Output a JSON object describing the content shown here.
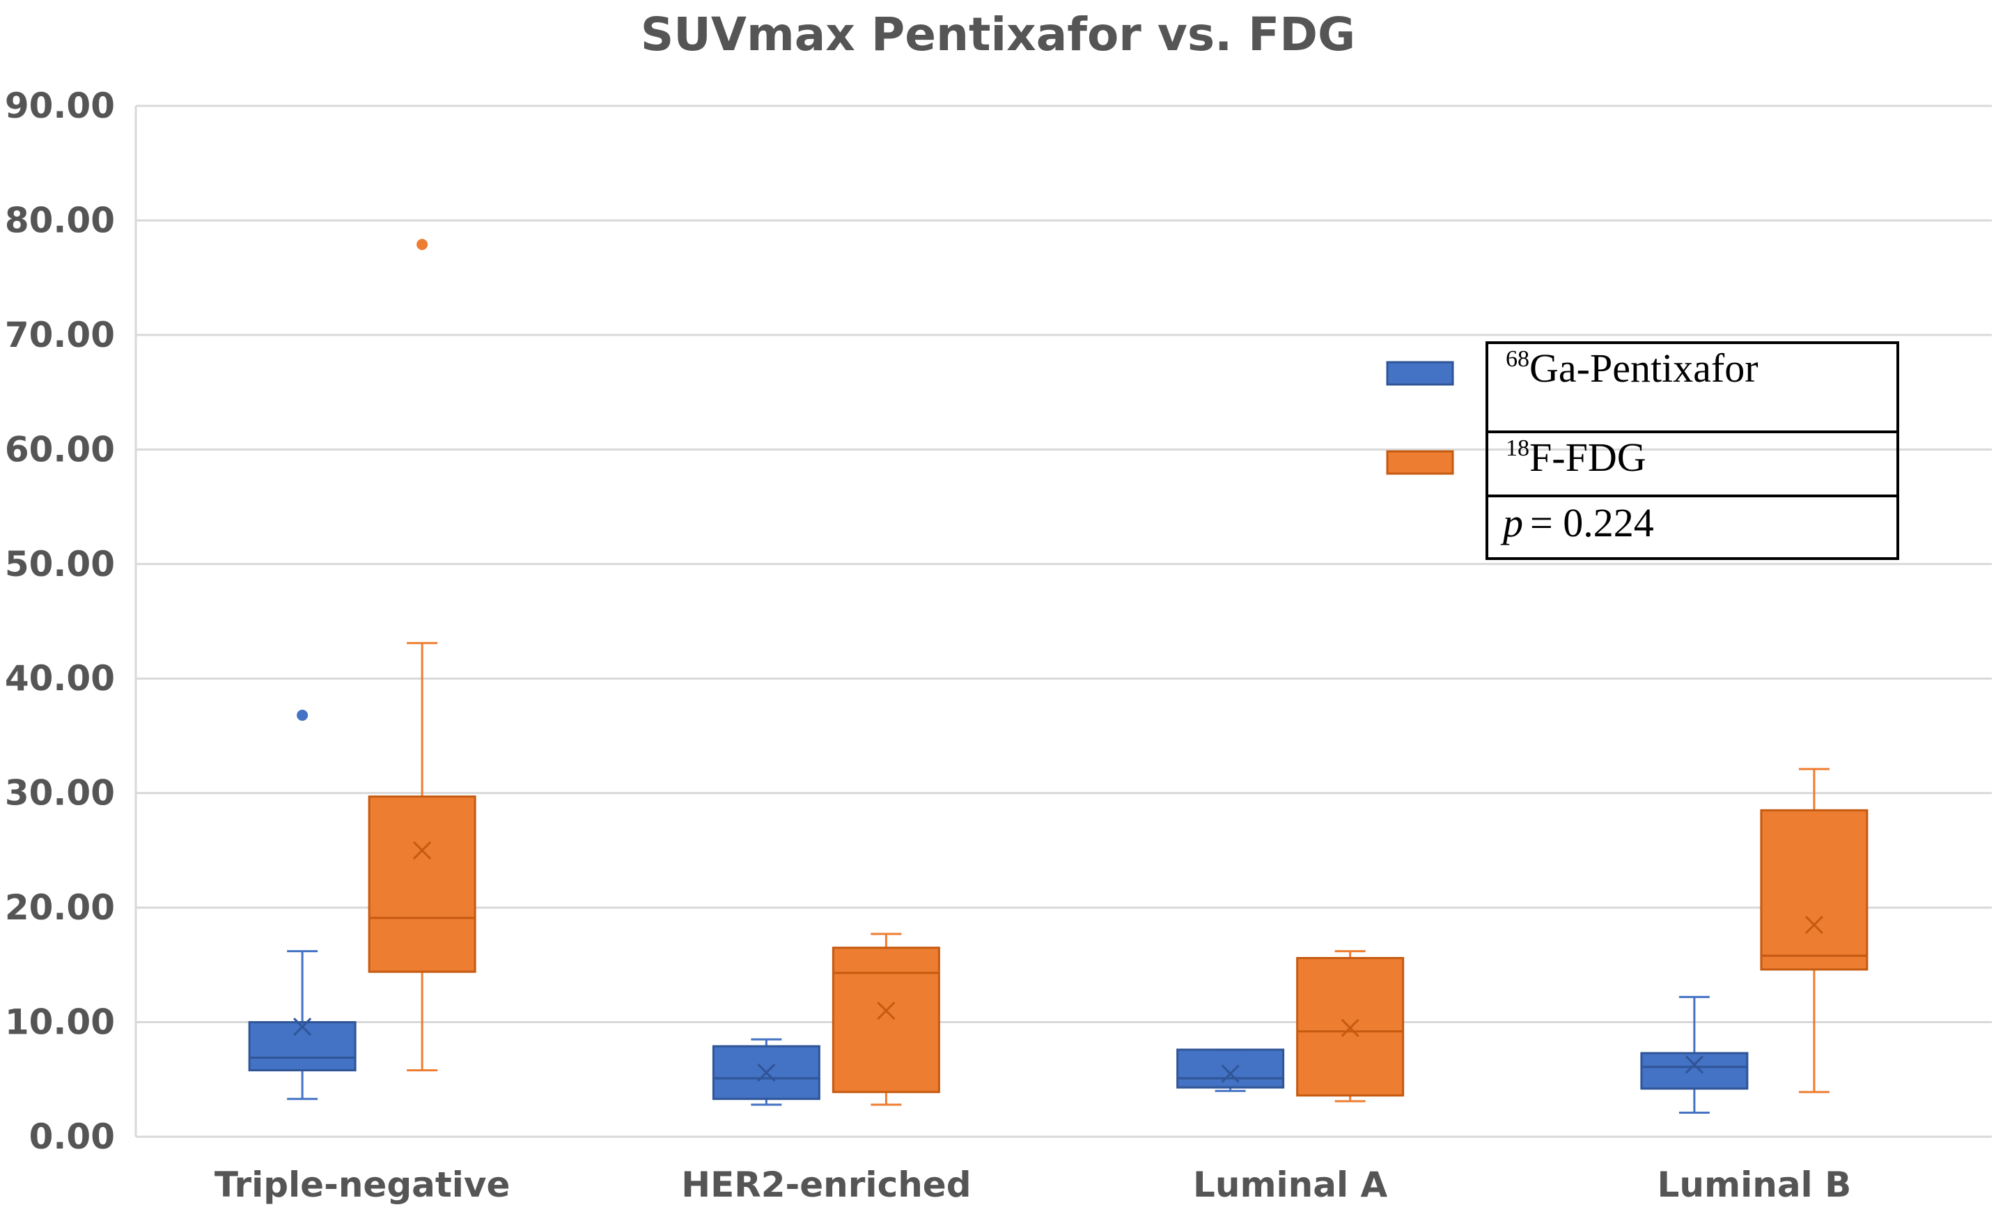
{
  "chart_data": {
    "type": "boxplot",
    "title": "SUVmax Pentixafor vs. FDG",
    "xlabel": "",
    "ylabel": "",
    "ylim": [
      0,
      90
    ],
    "yticks": [
      "0.00",
      "10.00",
      "20.00",
      "30.00",
      "40.00",
      "50.00",
      "60.00",
      "70.00",
      "80.00",
      "90.00"
    ],
    "grid": true,
    "categories": [
      "Triple-negative",
      "HER2-enriched",
      "Luminal A",
      "Luminal B"
    ],
    "series": [
      {
        "name": "68Ga-Pentixafor",
        "color": "#4472c4",
        "edge": "#2f5597",
        "boxes": [
          {
            "min": 3.3,
            "q1": 5.8,
            "median": 6.9,
            "q3": 10.0,
            "max": 16.2,
            "mean": 9.6,
            "outliers": [
              36.8
            ]
          },
          {
            "min": 2.8,
            "q1": 3.3,
            "median": 5.1,
            "q3": 7.9,
            "max": 8.5,
            "mean": 5.6,
            "outliers": []
          },
          {
            "min": 4.0,
            "q1": 4.3,
            "median": 5.1,
            "q3": 7.6,
            "max": 7.6,
            "mean": 5.5,
            "outliers": []
          },
          {
            "min": 2.1,
            "q1": 4.2,
            "median": 6.1,
            "q3": 7.3,
            "max": 12.2,
            "mean": 6.3,
            "outliers": []
          }
        ]
      },
      {
        "name": "18F-FDG",
        "color": "#ed7d31",
        "edge": "#c55a11",
        "boxes": [
          {
            "min": 5.8,
            "q1": 14.4,
            "median": 19.1,
            "q3": 29.7,
            "max": 43.1,
            "mean": 25.0,
            "outliers": [
              77.9
            ]
          },
          {
            "min": 2.8,
            "q1": 3.9,
            "median": 14.3,
            "q3": 16.5,
            "max": 17.7,
            "mean": 11.0,
            "outliers": []
          },
          {
            "min": 3.1,
            "q1": 3.6,
            "median": 9.2,
            "q3": 15.6,
            "max": 16.2,
            "mean": 9.5,
            "outliers": []
          },
          {
            "min": 3.9,
            "q1": 14.6,
            "median": 15.8,
            "q3": 28.5,
            "max": 32.1,
            "mean": 18.5,
            "outliers": []
          }
        ]
      }
    ],
    "legend": {
      "placement": "right",
      "entries": [
        {
          "sup": "68",
          "label": "Ga-Pentixafor"
        },
        {
          "sup": "18",
          "label": "F-FDG"
        }
      ],
      "p_symbol": "p",
      "p_value": "= 0.224"
    }
  }
}
